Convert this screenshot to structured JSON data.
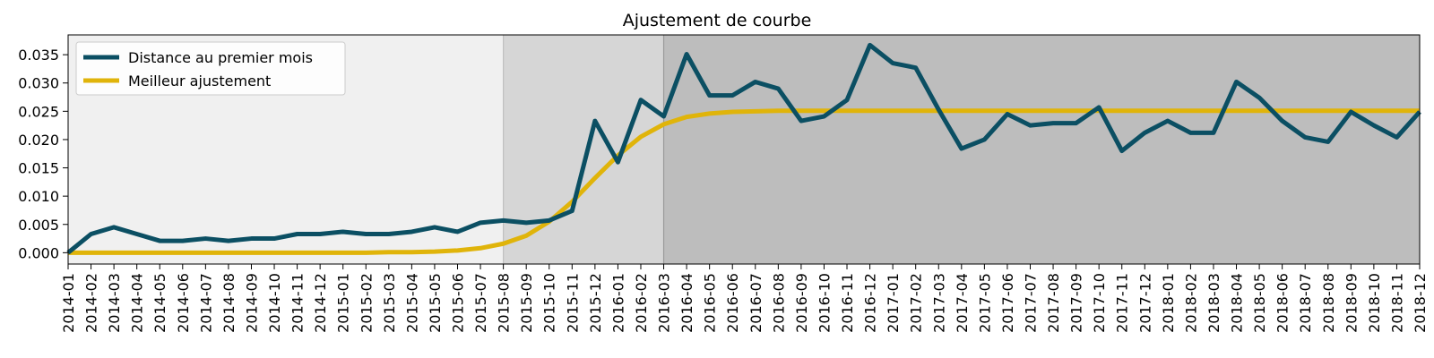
{
  "chart_data": {
    "type": "line",
    "title": "Ajustement de courbe",
    "xlabel": "",
    "ylabel": "",
    "ylim": [
      -0.002,
      0.0385
    ],
    "y_ticks": [
      "0.000",
      "0.005",
      "0.010",
      "0.015",
      "0.020",
      "0.025",
      "0.030",
      "0.035"
    ],
    "x": [
      "2014-01",
      "2014-02",
      "2014-03",
      "2014-04",
      "2014-05",
      "2014-06",
      "2014-07",
      "2014-08",
      "2014-09",
      "2014-10",
      "2014-11",
      "2014-12",
      "2015-01",
      "2015-02",
      "2015-03",
      "2015-04",
      "2015-05",
      "2015-06",
      "2015-07",
      "2015-08",
      "2015-09",
      "2015-10",
      "2015-11",
      "2015-12",
      "2016-01",
      "2016-02",
      "2016-03",
      "2016-04",
      "2016-05",
      "2016-06",
      "2016-07",
      "2016-08",
      "2016-09",
      "2016-10",
      "2016-11",
      "2016-12",
      "2017-01",
      "2017-02",
      "2017-03",
      "2017-04",
      "2017-05",
      "2017-06",
      "2017-07",
      "2017-08",
      "2017-09",
      "2017-10",
      "2017-11",
      "2017-12",
      "2018-01",
      "2018-02",
      "2018-03",
      "2018-04",
      "2018-05",
      "2018-06",
      "2018-07",
      "2018-08",
      "2018-09",
      "2018-10",
      "2018-11",
      "2018-12"
    ],
    "series": [
      {
        "name": "Distance au premier mois",
        "color": "#0b4f63",
        "values": [
          0.0,
          0.0033,
          0.0045,
          0.0033,
          0.0021,
          0.0021,
          0.0025,
          0.0021,
          0.0025,
          0.0025,
          0.0033,
          0.0033,
          0.0037,
          0.0033,
          0.0033,
          0.0037,
          0.0045,
          0.0037,
          0.0053,
          0.0057,
          0.0053,
          0.0057,
          0.0074,
          0.0233,
          0.016,
          0.027,
          0.0241,
          0.0351,
          0.0278,
          0.0278,
          0.0302,
          0.029,
          0.0233,
          0.0241,
          0.027,
          0.0367,
          0.0335,
          0.0327,
          0.0253,
          0.0184,
          0.02,
          0.0245,
          0.0225,
          0.0229,
          0.0229,
          0.0257,
          0.018,
          0.0212,
          0.0233,
          0.0212,
          0.0212,
          0.0302,
          0.0274,
          0.0233,
          0.0204,
          0.0196,
          0.0249,
          0.0225,
          0.0204,
          0.0249
        ]
      },
      {
        "name": "Meilleur ajustement",
        "color": "#e0b40a",
        "values": [
          0.0,
          0.0,
          0.0,
          0.0,
          0.0,
          0.0,
          0.0,
          0.0,
          0.0,
          0.0,
          0.0,
          0.0,
          0.0,
          0.0,
          0.0001,
          0.0001,
          0.0002,
          0.0004,
          0.0008,
          0.0016,
          0.003,
          0.0055,
          0.009,
          0.0132,
          0.0172,
          0.0205,
          0.0227,
          0.024,
          0.0246,
          0.0249,
          0.025,
          0.0251,
          0.0251,
          0.0251,
          0.0251,
          0.0251,
          0.0251,
          0.0251,
          0.0251,
          0.0251,
          0.0251,
          0.0251,
          0.0251,
          0.0251,
          0.0251,
          0.0251,
          0.0251,
          0.0251,
          0.0251,
          0.0251,
          0.0251,
          0.0251,
          0.0251,
          0.0251,
          0.0251,
          0.0251,
          0.0251,
          0.0251,
          0.0251,
          0.0251
        ]
      }
    ],
    "regions": [
      {
        "from": "2014-01",
        "to": "2015-08",
        "color": "#f0f0f0"
      },
      {
        "from": "2015-08",
        "to": "2016-03",
        "color": "#d6d6d6"
      },
      {
        "from": "2016-03",
        "to": "2018-12",
        "color": "#bdbdbd"
      }
    ],
    "legend_position": "top-left",
    "grid": false
  }
}
